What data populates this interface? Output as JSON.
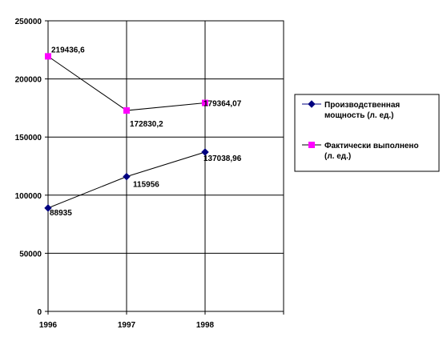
{
  "chart_data": {
    "type": "line",
    "x": [
      "1996",
      "1997",
      "1998"
    ],
    "y_ticks": [
      "0",
      "50000",
      "100000",
      "150000",
      "200000",
      "250000"
    ],
    "ylim": [
      0,
      250000
    ],
    "grid": true,
    "legend_position": "right",
    "series": [
      {
        "name": "Производственная мощность (л. ед.)",
        "name_lines": [
          "Производственная",
          "мощность (л. ед.)"
        ],
        "values": [
          88935,
          115956,
          137038.96
        ],
        "labels": [
          "88935",
          "115956",
          "137038,96"
        ],
        "color": "#000080",
        "marker": "diamond"
      },
      {
        "name": "Фактически выполнено (л. ед.)",
        "name_lines": [
          "Фактически выполнено",
          "(л. ед.)"
        ],
        "values": [
          219436.6,
          172830.2,
          179364.07
        ],
        "labels": [
          "219436,6",
          "172830,2",
          "179364,07"
        ],
        "color": "#ff00ff",
        "marker": "square"
      }
    ]
  }
}
